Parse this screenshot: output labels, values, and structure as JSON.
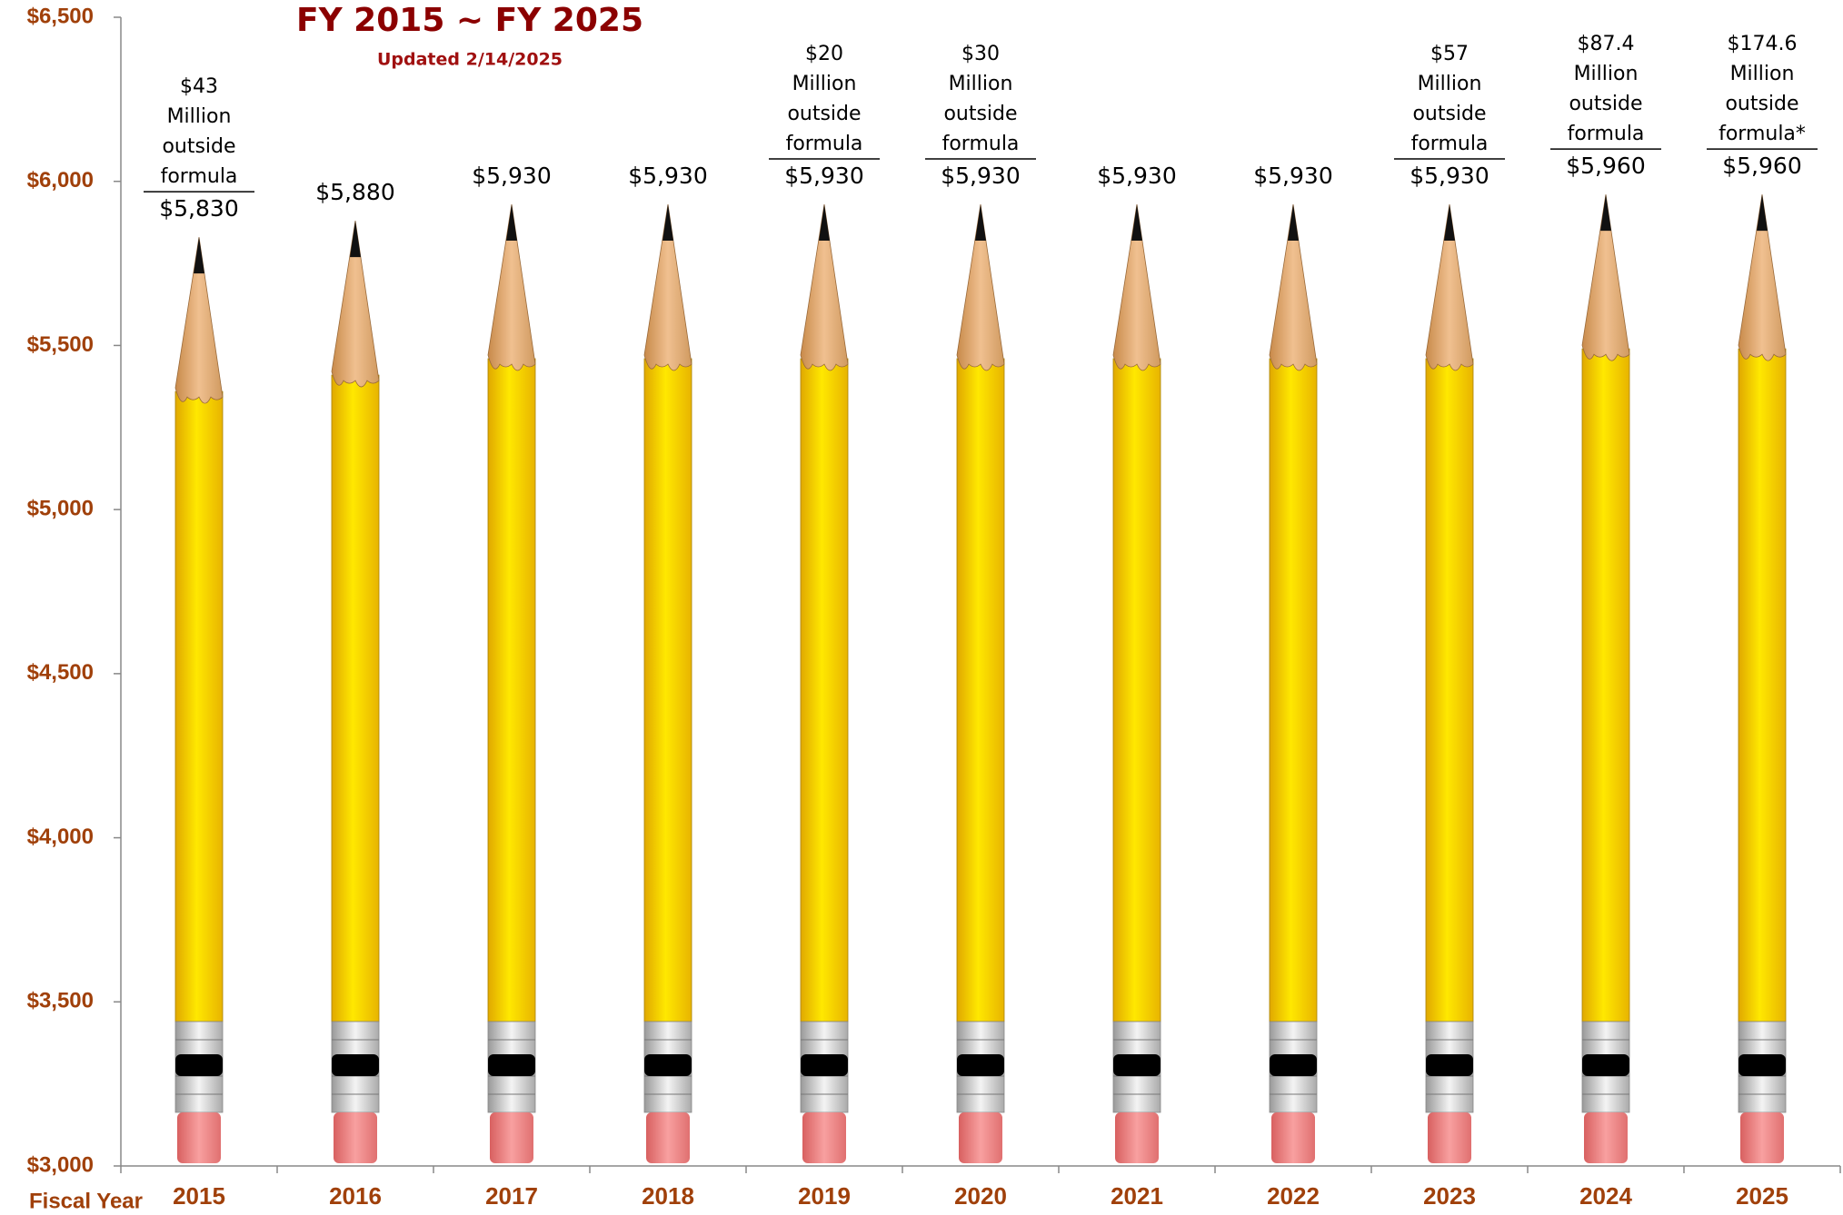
{
  "chart_data": {
    "type": "bar",
    "title": "FY 2015 ~ FY 2025",
    "subtitle": "Updated 2/14/2025",
    "x_label": "Fiscal Year",
    "categories": [
      "2015",
      "2016",
      "2017",
      "2018",
      "2019",
      "2020",
      "2021",
      "2022",
      "2023",
      "2024",
      "2025"
    ],
    "values": [
      5830,
      5880,
      5930,
      5930,
      5930,
      5930,
      5930,
      5930,
      5930,
      5960,
      5960
    ],
    "value_labels": [
      "$5,830",
      "$5,880",
      "$5,930",
      "$5,930",
      "$5,930",
      "$5,930",
      "$5,930",
      "$5,930",
      "$5,930",
      "$5,960",
      "$5,960"
    ],
    "annotations": [
      [
        "$43",
        "Million",
        "outside",
        "formula"
      ],
      null,
      null,
      null,
      [
        "$20",
        "Million",
        "outside",
        "formula"
      ],
      [
        "$30",
        "Million",
        "outside",
        "formula"
      ],
      null,
      null,
      [
        "$57",
        "Million",
        "outside",
        "formula"
      ],
      [
        "$87.4",
        "Million",
        "outside",
        "formula"
      ],
      [
        "$174.6",
        "Million",
        "outside",
        "formula*"
      ]
    ],
    "color": "#ffd700",
    "ylim": [
      3000,
      6500
    ],
    "yticks": [
      {
        "value": 3000,
        "label": "$3,000"
      },
      {
        "value": 3500,
        "label": "$3,500"
      },
      {
        "value": 4000,
        "label": "$4,000"
      },
      {
        "value": 4500,
        "label": "$4,500"
      },
      {
        "value": 5000,
        "label": "$5,000"
      },
      {
        "value": 5500,
        "label": "$5,500"
      },
      {
        "value": 6000,
        "label": "$6,000"
      },
      {
        "value": 6500,
        "label": "$6,500"
      }
    ],
    "grid": false
  }
}
